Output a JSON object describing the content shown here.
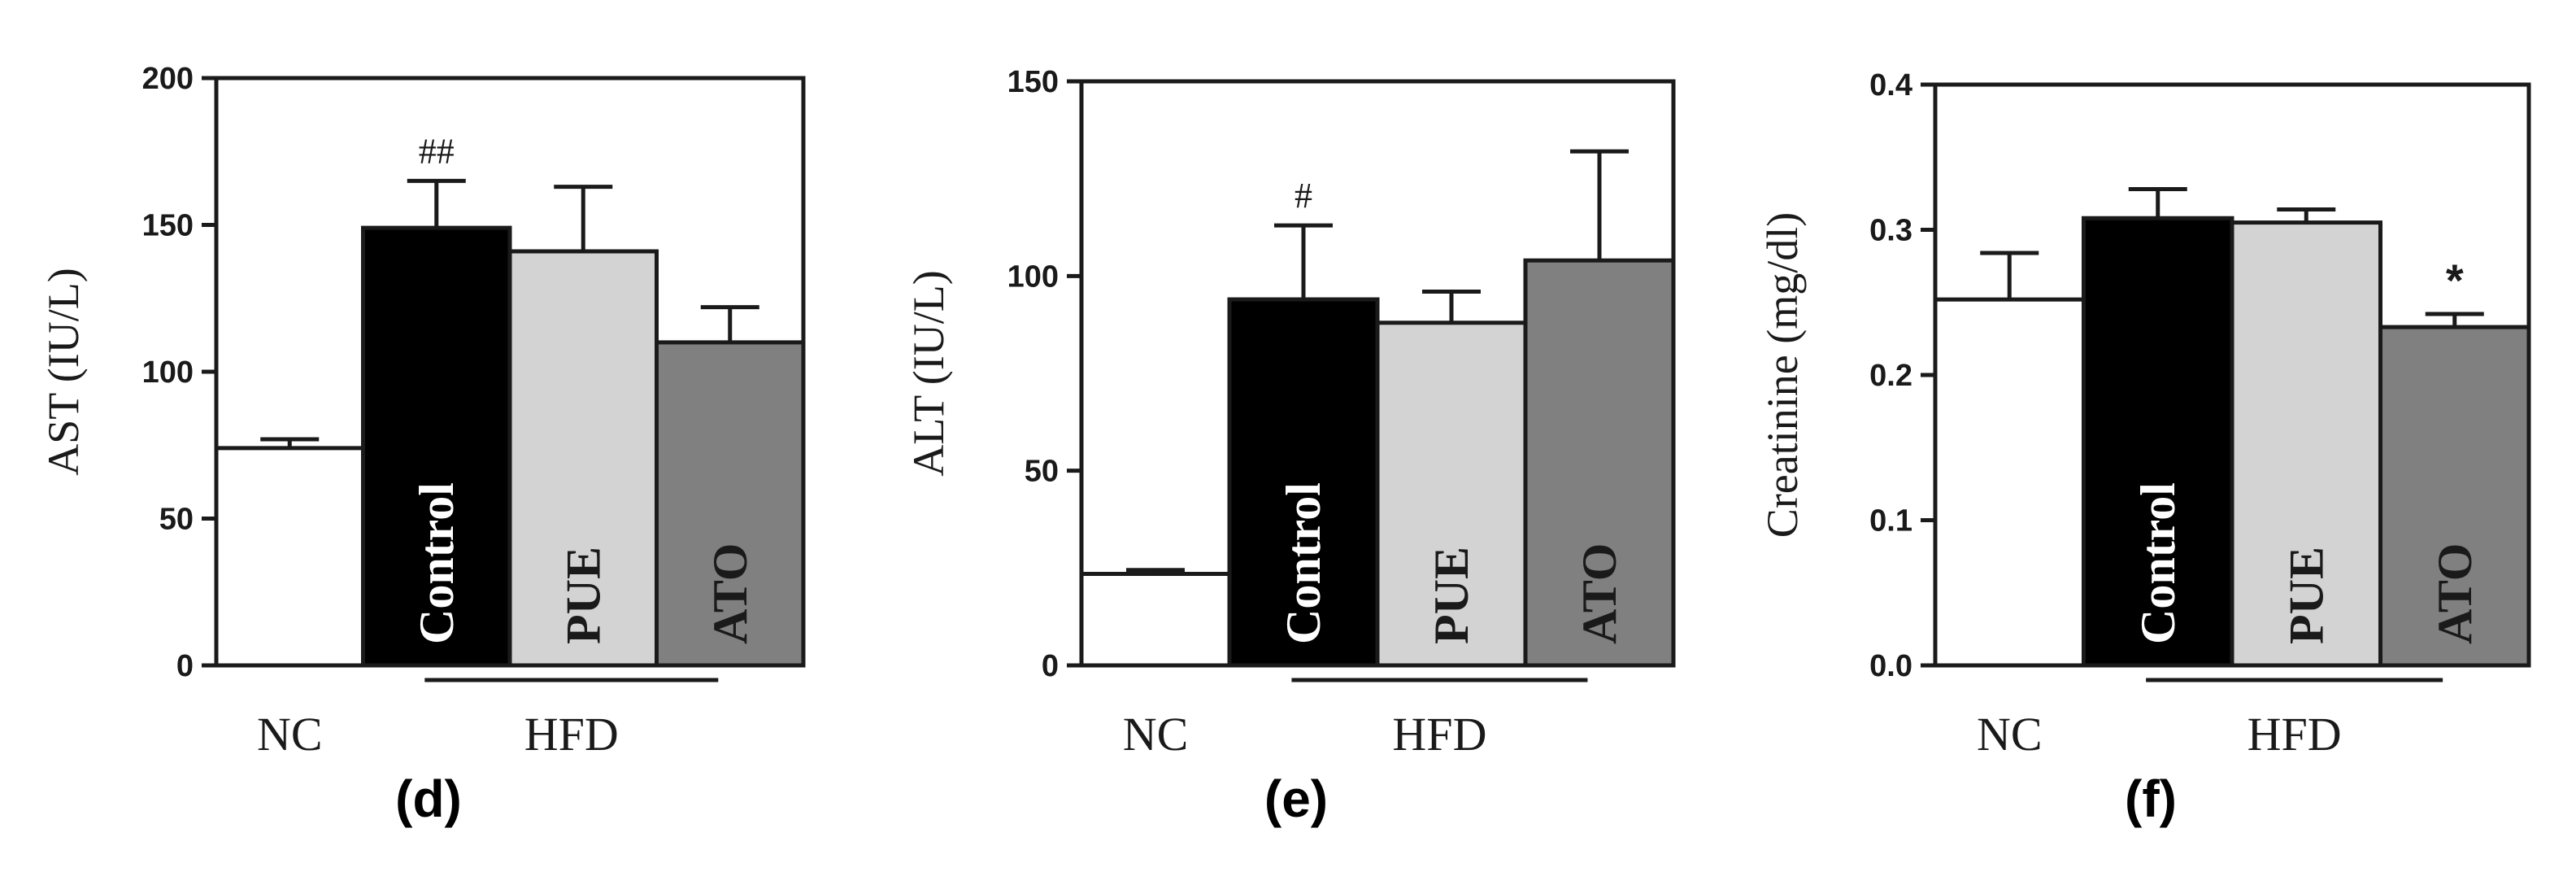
{
  "chart_data": [
    {
      "type": "bar",
      "panel_label": "(d)",
      "ylabel": "AST (IU/L)",
      "ylim": [
        0,
        200
      ],
      "yticks": [
        0,
        50,
        100,
        150,
        200
      ],
      "yticks_text": [
        "0",
        "50",
        "100",
        "150",
        "200"
      ],
      "categories": [
        "NC",
        "Control",
        "PUE",
        "ATO"
      ],
      "bar_labels": [
        "",
        "Control",
        "PUE",
        "ATO"
      ],
      "values": [
        74,
        149,
        141,
        110
      ],
      "errors": [
        3,
        16,
        22,
        12
      ],
      "annotations": [
        "",
        "##",
        "",
        ""
      ],
      "colors": [
        "#ffffff",
        "#000000",
        "#d3d3d3",
        "#808080"
      ],
      "group_labels": {
        "nc": "NC",
        "hfd": "HFD"
      }
    },
    {
      "type": "bar",
      "panel_label": "(e)",
      "ylabel": "ALT (IU/L)",
      "ylim": [
        0,
        150
      ],
      "yticks": [
        0,
        50,
        100,
        150
      ],
      "yticks_text": [
        "0",
        "50",
        "100",
        "150"
      ],
      "categories": [
        "NC",
        "Control",
        "PUE",
        "ATO"
      ],
      "bar_labels": [
        "",
        "Control",
        "PUE",
        "ATO"
      ],
      "values": [
        23.5,
        94,
        88,
        104
      ],
      "errors": [
        1,
        19,
        8,
        28
      ],
      "annotations": [
        "",
        "#",
        "",
        ""
      ],
      "colors": [
        "#ffffff",
        "#000000",
        "#d3d3d3",
        "#808080"
      ],
      "group_labels": {
        "nc": "NC",
        "hfd": "HFD"
      }
    },
    {
      "type": "bar",
      "panel_label": "(f)",
      "ylabel": "Creatinine (mg/dl)",
      "ylim": [
        0,
        0.4
      ],
      "yticks": [
        0,
        0.1,
        0.2,
        0.3,
        0.4
      ],
      "yticks_text": [
        "0.0",
        "0.1",
        "0.2",
        "0.3",
        "0.4"
      ],
      "categories": [
        "NC",
        "Control",
        "PUE",
        "ATO"
      ],
      "bar_labels": [
        "",
        "Control",
        "PUE",
        "ATO"
      ],
      "values": [
        0.252,
        0.308,
        0.305,
        0.233
      ],
      "errors": [
        0.032,
        0.02,
        0.009,
        0.009
      ],
      "annotations": [
        "",
        "",
        "",
        "*"
      ],
      "colors": [
        "#ffffff",
        "#000000",
        "#d3d3d3",
        "#808080"
      ],
      "group_labels": {
        "nc": "NC",
        "hfd": "HFD"
      }
    }
  ]
}
